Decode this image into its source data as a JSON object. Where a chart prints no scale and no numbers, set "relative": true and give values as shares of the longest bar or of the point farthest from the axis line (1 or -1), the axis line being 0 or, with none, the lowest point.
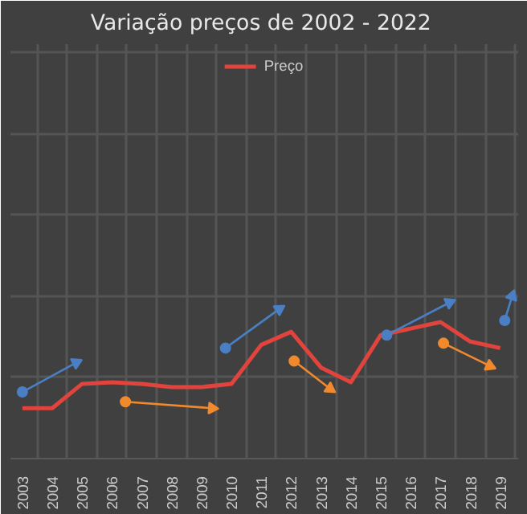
{
  "chart_data": {
    "type": "line",
    "title": "Variação  preços de 2002 - 2022",
    "relative": true,
    "x": [
      2003,
      2004,
      2005,
      2006,
      2007,
      2008,
      2009,
      2010,
      2011,
      2012,
      2013,
      2014,
      2015,
      2016,
      2017,
      2018,
      2019
    ],
    "xlim": [
      2002.6,
      2019.6
    ],
    "xticks": [
      2003,
      2004,
      2005,
      2006,
      2007,
      2008,
      2009,
      2010,
      2011,
      2012,
      2013,
      2014,
      2015,
      2016,
      2017,
      2018,
      2019
    ],
    "series": [
      {
        "name": "Preço",
        "color": "#e0443c",
        "values": [
          0.31,
          0.31,
          0.46,
          0.47,
          0.46,
          0.44,
          0.44,
          0.46,
          0.7,
          0.78,
          0.56,
          0.47,
          0.76,
          0.8,
          0.84,
          0.72,
          0.68
        ]
      },
      {
        "color": "#4a7fc4",
        "marker": "circle",
        "x": [
          2003.0,
          2004.8,
          2004.9,
          2009.8,
          2011.6,
          2011.7,
          2015.2,
          2017.3,
          2017.4,
          2019.15,
          2019.4
        ],
        "values": [
          0.41,
          0.59,
          null,
          0.68,
          0.92,
          null,
          0.76,
          0.96,
          null,
          0.85,
          1.0
        ]
      },
      {
        "color": "#f08a2c",
        "marker": "circle",
        "x": [
          2006.45,
          2009.35,
          2009.5,
          2012.1,
          2013.3,
          2013.4,
          2017.1,
          2018.65
        ],
        "values": [
          0.35,
          0.31,
          null,
          0.6,
          0.43,
          null,
          0.71,
          0.57
        ]
      }
    ],
    "grid": true,
    "legend": "top"
  }
}
